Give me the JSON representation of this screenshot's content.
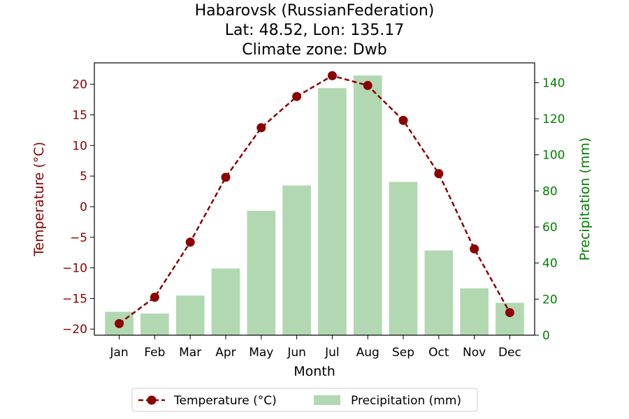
{
  "chart_data": {
    "type": "bar+line",
    "title_lines": [
      "Habarovsk (RussianFederation)",
      "Lat: 48.52, Lon: 135.17",
      "Climate zone: Dwb"
    ],
    "xlabel": "Month",
    "ylabel_left": "Temperature (°C)",
    "ylabel_right": "Precipitation (mm)",
    "categories": [
      "Jan",
      "Feb",
      "Mar",
      "Apr",
      "May",
      "Jun",
      "Jul",
      "Aug",
      "Sep",
      "Oct",
      "Nov",
      "Dec"
    ],
    "temperature": {
      "name": "Temperature (°C)",
      "values": [
        -19.1,
        -14.8,
        -5.8,
        4.8,
        12.9,
        18.0,
        21.4,
        19.8,
        14.1,
        5.4,
        -6.9,
        -17.3
      ],
      "ylim": [
        -21,
        23.5
      ],
      "ticks": [
        -20,
        -15,
        -10,
        -5,
        0,
        5,
        10,
        15,
        20
      ],
      "color": "#8b0000",
      "style": "dashed line with circle markers"
    },
    "precipitation": {
      "name": "Precipitation (mm)",
      "values": [
        13,
        12,
        22,
        37,
        69,
        83,
        137,
        144,
        85,
        47,
        26,
        18
      ],
      "ylim": [
        0,
        151
      ],
      "ticks": [
        0,
        20,
        40,
        60,
        80,
        100,
        120,
        140
      ],
      "color": "#b2d8b2",
      "tick_color": "#008000"
    },
    "legend": {
      "placement": "bottom-center",
      "entries": [
        "Temperature (°C)",
        "Precipitation (mm)"
      ]
    },
    "grid": false
  }
}
